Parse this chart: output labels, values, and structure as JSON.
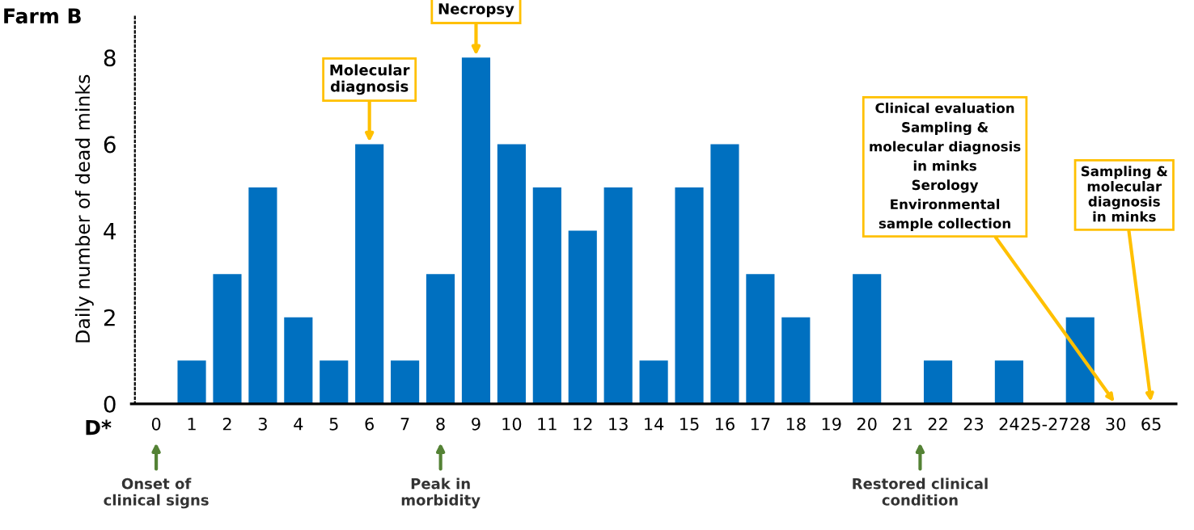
{
  "chart_data": {
    "type": "bar",
    "title": "Farm B",
    "ylabel": "Daily number of dead minks",
    "xlabel": "D*",
    "categories": [
      "0",
      "1",
      "2",
      "3",
      "4",
      "5",
      "6",
      "7",
      "8",
      "9",
      "10",
      "11",
      "12",
      "13",
      "14",
      "15",
      "16",
      "17",
      "18",
      "19",
      "20",
      "21",
      "22",
      "23",
      "24",
      "25-27",
      "28",
      "30",
      "65"
    ],
    "values": [
      0,
      1,
      3,
      5,
      2,
      1,
      6,
      1,
      3,
      8,
      6,
      5,
      4,
      5,
      1,
      5,
      6,
      3,
      2,
      0,
      3,
      0,
      1,
      0,
      1,
      0,
      2,
      0,
      0
    ],
    "color": "#0070c0",
    "ylim": [
      0,
      9
    ],
    "yticks": [
      0,
      2,
      4,
      6,
      8
    ],
    "grid": false,
    "legend": false,
    "annotations": [
      {
        "text": "Molecular\ndiagnosis",
        "x": "6",
        "y": 6
      },
      {
        "text": "Necropsy",
        "x": "9",
        "y": 8
      },
      {
        "text": "Clinical evaluation\nSampling &\nmolecular diagnosis\nin minks\nSerology\nEnvironmental\nsample collection",
        "x": "30",
        "y": 0
      },
      {
        "text": "Sampling &\nmolecular\ndiagnosis\nin minks",
        "x": "65",
        "y": 0
      },
      "Onset of\nclinical signs",
      "Peak in\nmorbidity",
      "Restored clinical\ncondition"
    ]
  }
}
